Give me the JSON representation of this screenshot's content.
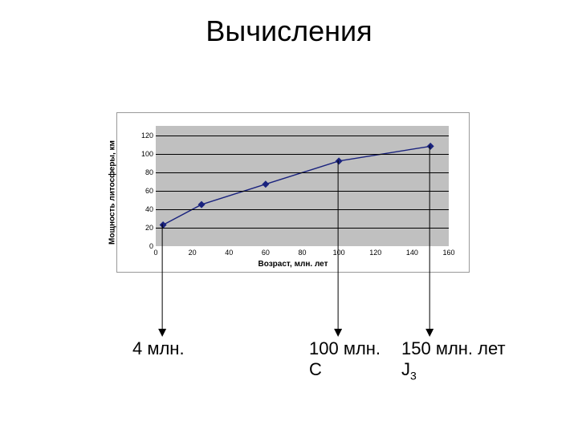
{
  "title": "Вычисления",
  "chart": {
    "type": "line",
    "ylabel": "Мощность литосферы, км",
    "xlabel": "Возраст, млн. лет",
    "xlim": [
      0,
      160
    ],
    "ylim": [
      0,
      130
    ],
    "yticks": [
      0,
      20,
      40,
      60,
      80,
      100,
      120
    ],
    "xticks": [
      0,
      20,
      40,
      60,
      80,
      100,
      120,
      140,
      160
    ],
    "background_color": "#c0c0c0",
    "line_color": "#1a237e",
    "line_width": 1.4,
    "marker_color": "#1a237e",
    "marker_size": 4.5,
    "gridline_color": "#000000",
    "data": {
      "x": [
        4,
        25,
        60,
        100,
        150
      ],
      "y": [
        23,
        45,
        67,
        92,
        108
      ]
    }
  },
  "arrows": {
    "color": "#000000",
    "width": 1,
    "from_x": [
      4,
      100,
      150
    ],
    "end_y_page": 415
  },
  "annotations": [
    {
      "text": "4 млн.",
      "sub": "",
      "x_page": 165,
      "y_page": 422
    },
    {
      "text": "100 млн.\nС",
      "sub": "",
      "x_page": 385,
      "y_page": 422
    },
    {
      "text": "150 млн. лет\nJ",
      "sub": "3",
      "x_page": 500,
      "y_page": 422
    }
  ]
}
